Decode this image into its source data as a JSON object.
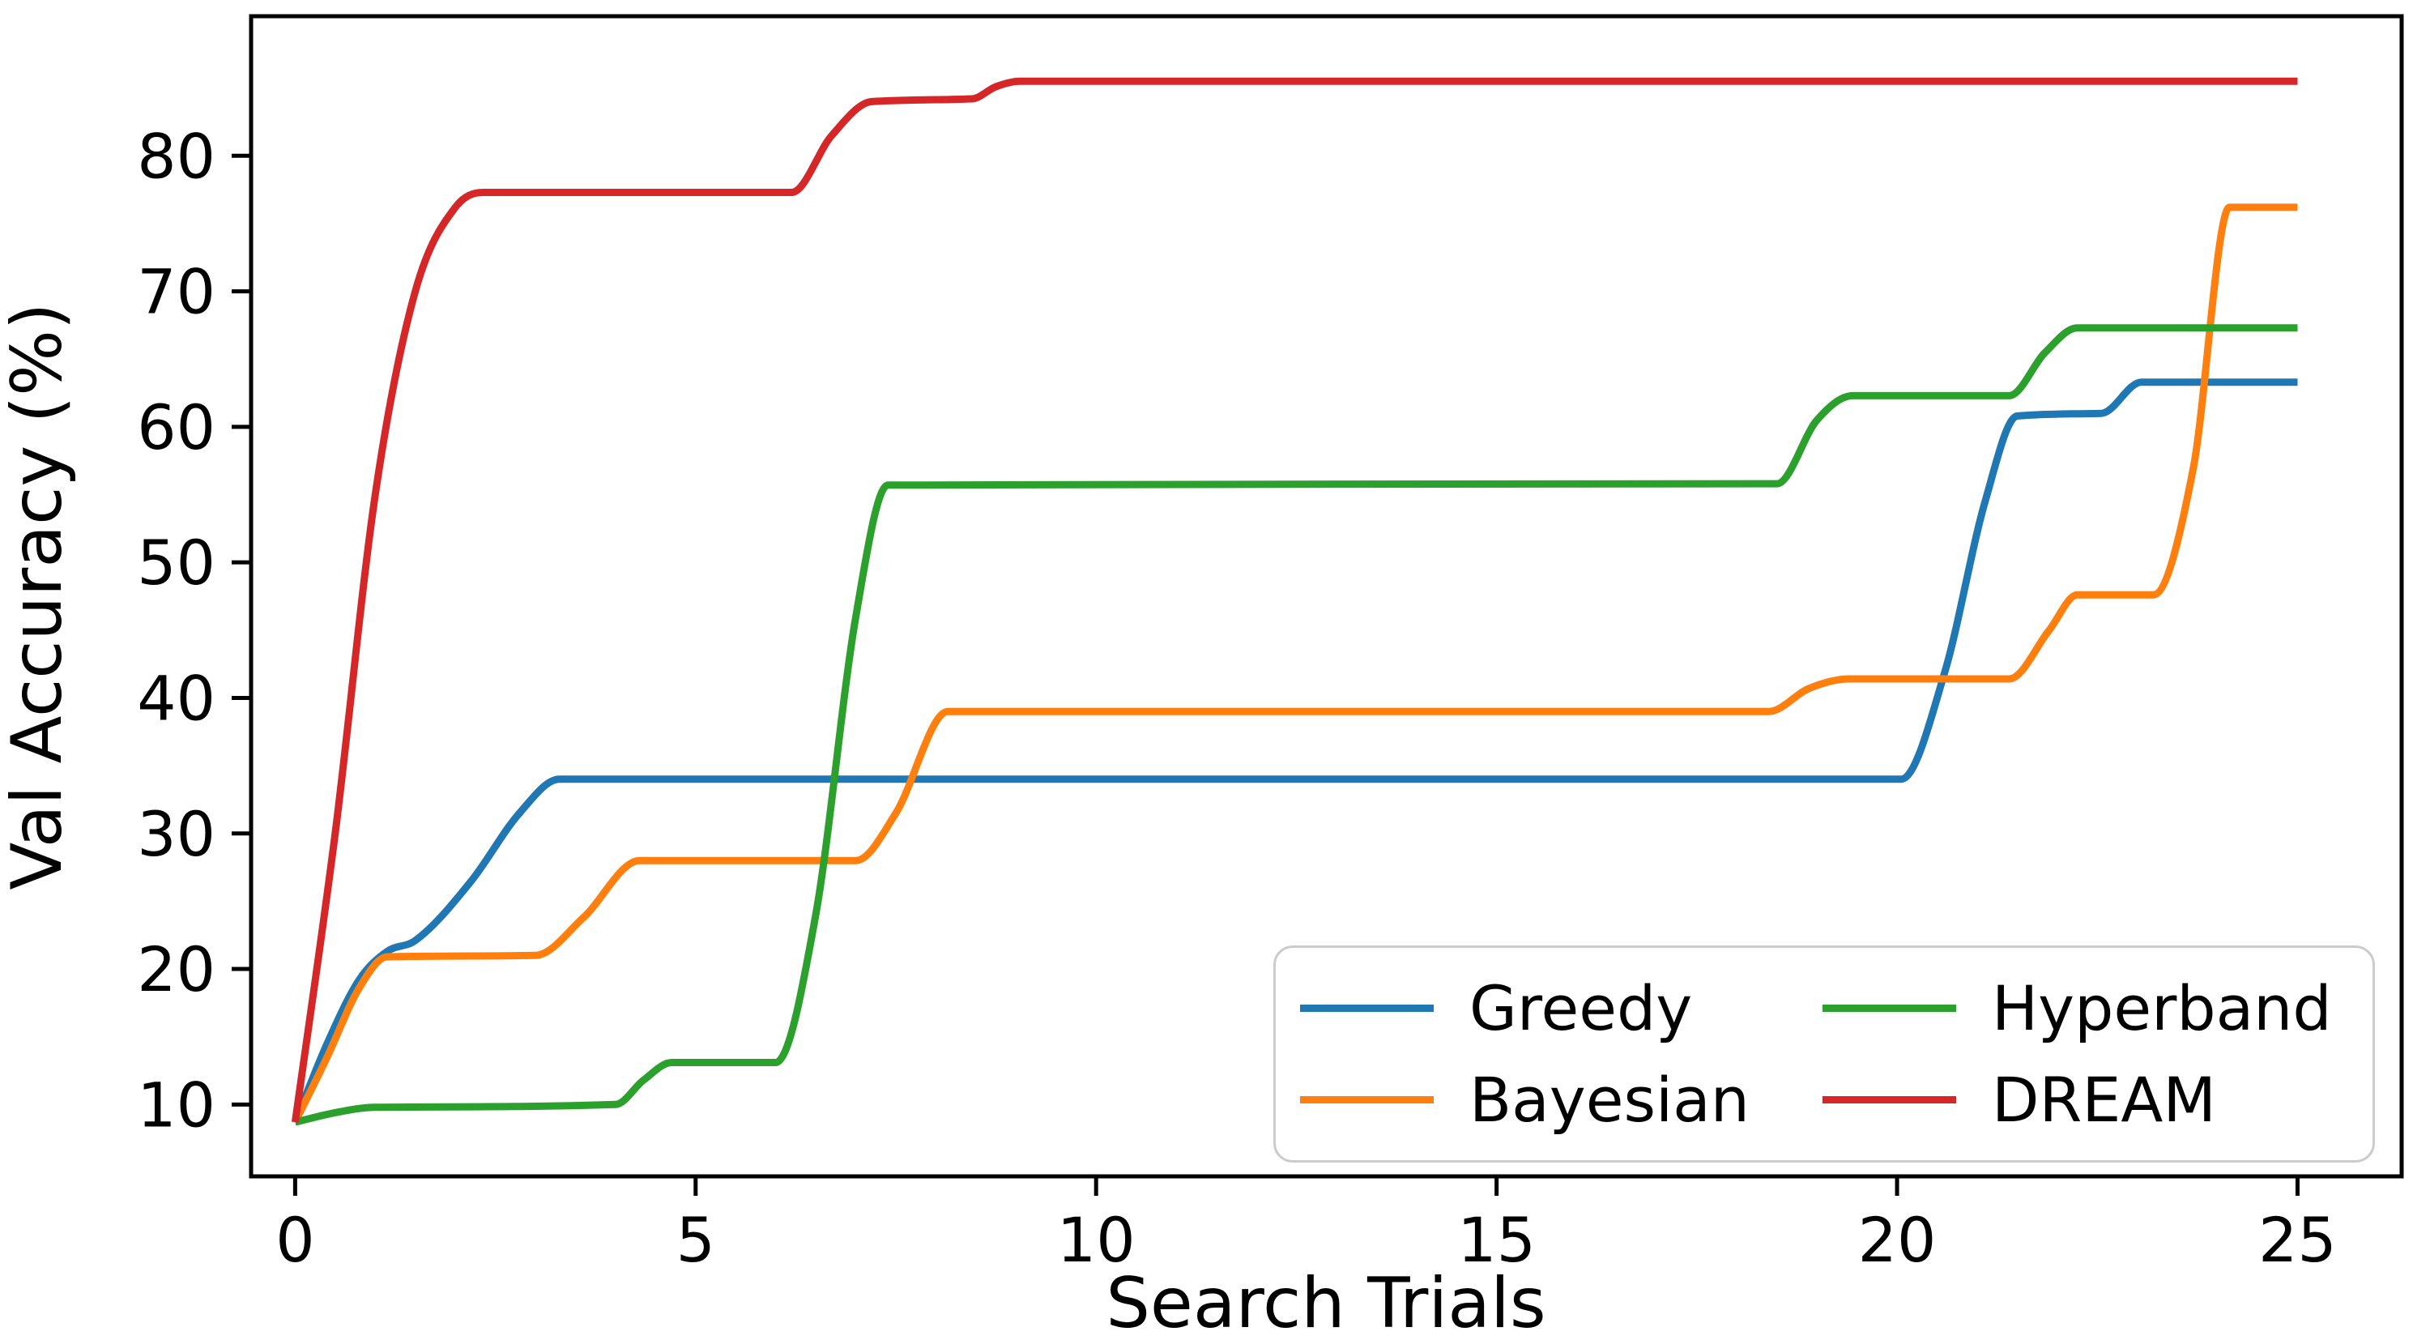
{
  "chart_data": {
    "type": "line",
    "title": "",
    "xlabel": "Search Trials",
    "ylabel": "Val Accuracy (%)",
    "x_ticks": [
      0,
      5,
      10,
      15,
      20,
      25
    ],
    "y_ticks": [
      10,
      20,
      30,
      40,
      50,
      60,
      70,
      80
    ],
    "xlim": [
      -0.55,
      26.3
    ],
    "ylim": [
      4.7,
      90.3
    ],
    "grid": false,
    "legend_position": "lower right",
    "legend_columns": [
      [
        "Greedy",
        "Bayesian"
      ],
      [
        "Hyperband",
        "DREAM"
      ]
    ],
    "axis_color": "#000000",
    "series": [
      {
        "name": "Greedy",
        "color": "#1f77b4",
        "points": [
          [
            0,
            8.7
          ],
          [
            0.4,
            14.5
          ],
          [
            0.8,
            19.2
          ],
          [
            1.15,
            21.3
          ],
          [
            1.5,
            22.1
          ],
          [
            2.2,
            26.5
          ],
          [
            2.8,
            31.5
          ],
          [
            3.3,
            34
          ],
          [
            20.05,
            34
          ],
          [
            20.6,
            42
          ],
          [
            21.1,
            54.5
          ],
          [
            21.5,
            60.8
          ],
          [
            22.55,
            61
          ],
          [
            23.05,
            63.3
          ],
          [
            25,
            63.3
          ]
        ]
      },
      {
        "name": "Bayesian",
        "color": "#ff7f0e",
        "points": [
          [
            0,
            8.7
          ],
          [
            0.4,
            13.5
          ],
          [
            0.8,
            18.6
          ],
          [
            1.15,
            20.9
          ],
          [
            3.0,
            21
          ],
          [
            3.6,
            23.8
          ],
          [
            4.3,
            28
          ],
          [
            7.0,
            28
          ],
          [
            7.5,
            31.5
          ],
          [
            8.15,
            39
          ],
          [
            18.4,
            39
          ],
          [
            18.9,
            40.7
          ],
          [
            19.4,
            41.4
          ],
          [
            21.4,
            41.4
          ],
          [
            21.9,
            45
          ],
          [
            22.25,
            47.6
          ],
          [
            23.2,
            47.6
          ],
          [
            23.7,
            57
          ],
          [
            24.15,
            76.2
          ],
          [
            25,
            76.2
          ]
        ]
      },
      {
        "name": "Hyperband",
        "color": "#2ca02c",
        "points": [
          [
            0,
            8.7
          ],
          [
            0.5,
            9.4
          ],
          [
            1.0,
            9.8
          ],
          [
            4.0,
            10.0
          ],
          [
            4.35,
            11.8
          ],
          [
            4.7,
            13.1
          ],
          [
            6.0,
            13.1
          ],
          [
            6.5,
            24
          ],
          [
            7.0,
            46
          ],
          [
            7.4,
            55.7
          ],
          [
            18.5,
            55.8
          ],
          [
            19.0,
            60.5
          ],
          [
            19.45,
            62.3
          ],
          [
            21.4,
            62.3
          ],
          [
            21.85,
            65.5
          ],
          [
            22.25,
            67.3
          ],
          [
            25,
            67.3
          ]
        ]
      },
      {
        "name": "DREAM",
        "color": "#d62728",
        "points": [
          [
            0,
            8.7
          ],
          [
            0.5,
            30
          ],
          [
            1.0,
            55
          ],
          [
            1.5,
            70
          ],
          [
            2.0,
            76.2
          ],
          [
            2.35,
            77.3
          ],
          [
            6.2,
            77.3
          ],
          [
            6.7,
            81.5
          ],
          [
            7.2,
            84
          ],
          [
            8.45,
            84.2
          ],
          [
            8.75,
            85.1
          ],
          [
            9.05,
            85.5
          ],
          [
            25,
            85.5
          ]
        ]
      }
    ]
  }
}
